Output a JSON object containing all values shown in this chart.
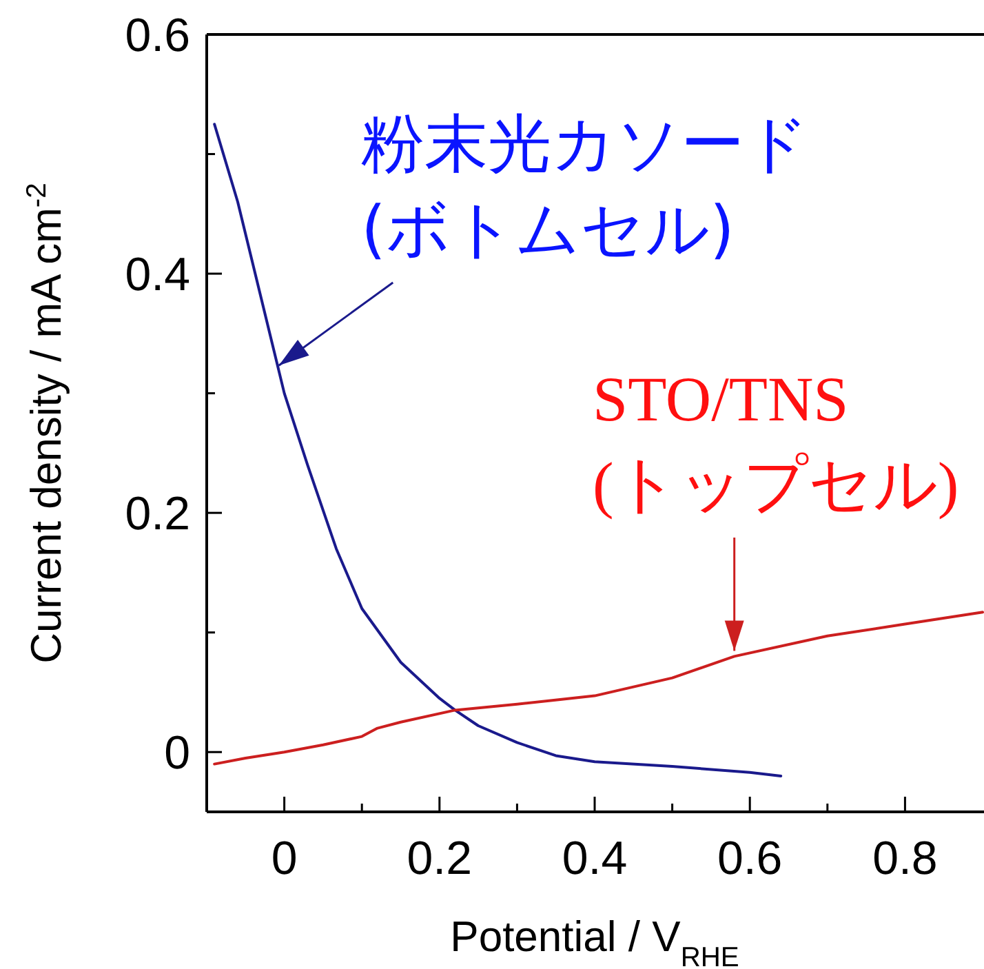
{
  "chart_data": {
    "type": "line",
    "xlabel": "Potential / V$_{RHE}$",
    "ylabel": "Current density / mA cm$^{-2}$",
    "xlim": [
      -0.1,
      0.9
    ],
    "ylim": [
      -0.05,
      0.6
    ],
    "xticks": [
      {
        "value": -0.1,
        "label": null
      },
      0,
      {
        "value": 0.1,
        "label": null
      },
      0.2,
      {
        "value": 0.3,
        "label": null
      },
      0.4,
      {
        "value": 0.5,
        "label": null
      },
      0.6,
      {
        "value": 0.7,
        "label": null
      },
      0.8
    ],
    "yticks": [
      0,
      {
        "value": 0.1,
        "label": null
      },
      0.2,
      {
        "value": 0.3,
        "label": null
      },
      0.4,
      {
        "value": 0.5,
        "label": null
      },
      0.6
    ],
    "grid": false,
    "line_style": "solid",
    "series": [
      {
        "name": "粉末光カソード (ボトムセル)",
        "color": "#1a1a8c",
        "x": [
          -0.09,
          -0.06,
          -0.03,
          0,
          0.03,
          0.067,
          0.1,
          0.15,
          0.2,
          0.22,
          0.25,
          0.3,
          0.35,
          0.4,
          0.5,
          0.6,
          0.64
        ],
        "values": [
          0.525,
          0.46,
          0.38,
          0.3,
          0.24,
          0.17,
          0.12,
          0.075,
          0.045,
          0.035,
          0.022,
          0.008,
          -0.003,
          -0.008,
          -0.012,
          -0.017,
          -0.02
        ]
      },
      {
        "name": "STO/TNS (トップセル)",
        "color": "#cc1f1f",
        "x": [
          -0.09,
          -0.05,
          0,
          0.05,
          0.1,
          0.12,
          0.15,
          0.22,
          0.3,
          0.4,
          0.5,
          0.58,
          0.7,
          0.8,
          0.9
        ],
        "values": [
          -0.01,
          -0.005,
          0,
          0.006,
          0.013,
          0.02,
          0.025,
          0.035,
          0.04,
          0.047,
          0.062,
          0.08,
          0.097,
          0.107,
          0.117
        ]
      }
    ]
  }
}
